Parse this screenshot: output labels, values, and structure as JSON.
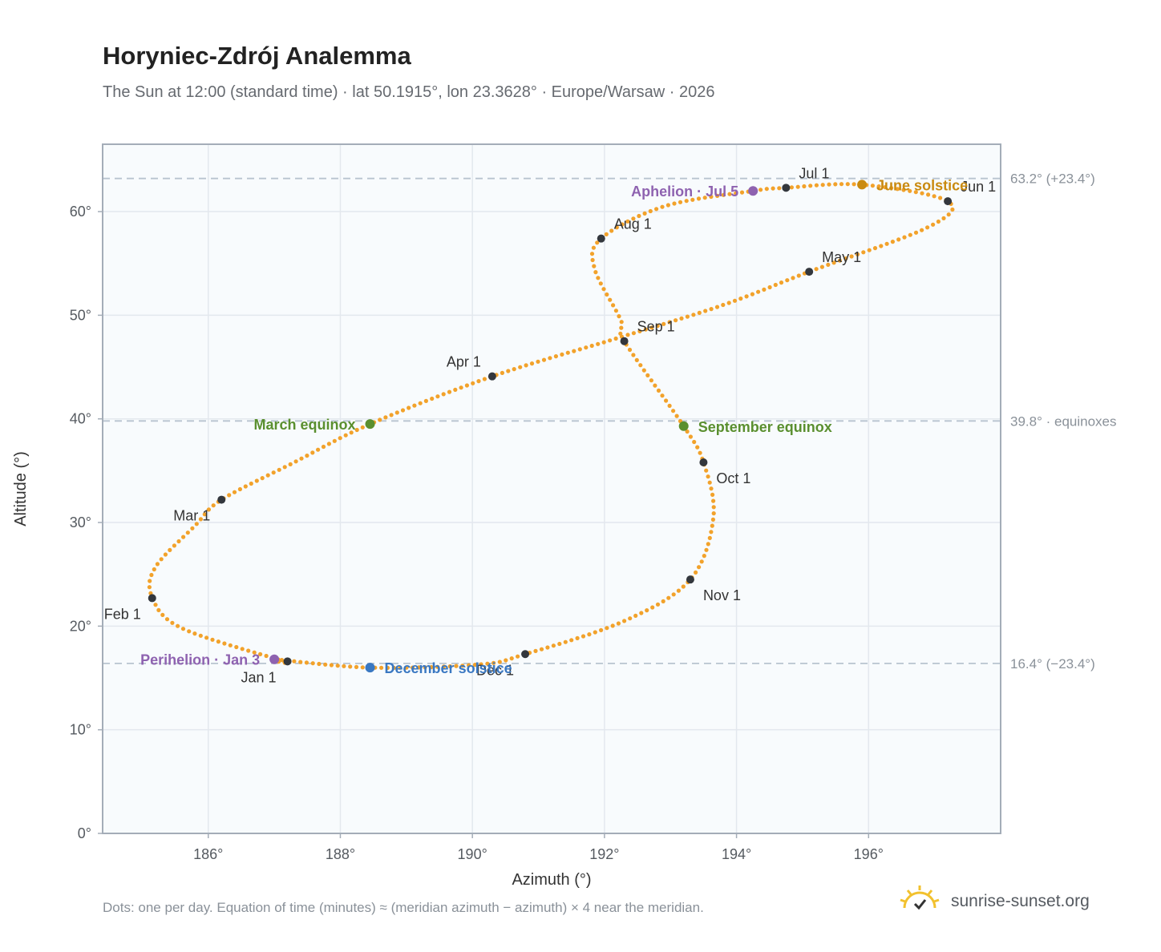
{
  "header": {
    "title": "Horyniec-Zdrój Analemma",
    "subtitle": "The Sun at 12:00 (standard time) · lat 50.1915°, lon 23.3628° · Europe/Warsaw · 2026"
  },
  "footer": {
    "note": "Dots: one per day. Equation of time (minutes) ≈ (meridian azimuth − azimuth) × 4 near the meridian.",
    "brand": "sunrise-sunset.org",
    "brand_icon": "sun-logo-icon"
  },
  "colors": {
    "path": "#f2a22b",
    "month_marker": "#33373d",
    "equinox": "#5a8f2f",
    "june_solstice": "#c98a10",
    "december_solstice": "#3a78c2",
    "apsis": "#8e62b0",
    "plot_bg": "#f8fbfd",
    "grid": "#e3e8ee",
    "frame": "#a4adb8",
    "ref_line": "#b8c4d0"
  },
  "chart_data": {
    "type": "scatter",
    "title": "Horyniec-Zdrój Analemma",
    "xlabel": "Azimuth (°)",
    "ylabel": "Altitude (°)",
    "xlim": [
      184.4,
      198.0
    ],
    "ylim": [
      0,
      66.5
    ],
    "xticks": [
      186,
      188,
      190,
      192,
      194,
      196
    ],
    "yticks": [
      0,
      10,
      20,
      30,
      40,
      50,
      60
    ],
    "x_tick_labels": [
      "186°",
      "188°",
      "190°",
      "192°",
      "194°",
      "196°"
    ],
    "y_tick_labels": [
      "0°",
      "10°",
      "20°",
      "30°",
      "40°",
      "50°",
      "60°"
    ],
    "grid": true,
    "legend": "none",
    "series": [
      {
        "points_per": "day",
        "anchors": [
          {
            "x": 187.15,
            "y": 16.6
          },
          {
            "x": 185.6,
            "y": 19.8
          },
          {
            "x": 185.15,
            "y": 22.8
          },
          {
            "x": 185.2,
            "y": 25.7
          },
          {
            "x": 185.8,
            "y": 29.7
          },
          {
            "x": 186.2,
            "y": 32.2
          },
          {
            "x": 187.3,
            "y": 35.8
          },
          {
            "x": 188.45,
            "y": 39.5
          },
          {
            "x": 190.3,
            "y": 44.1
          },
          {
            "x": 192.2,
            "y": 47.8
          },
          {
            "x": 193.8,
            "y": 51.0
          },
          {
            "x": 195.1,
            "y": 54.2
          },
          {
            "x": 196.9,
            "y": 58.5
          },
          {
            "x": 197.2,
            "y": 61.0
          },
          {
            "x": 195.9,
            "y": 62.6
          },
          {
            "x": 194.75,
            "y": 62.3
          },
          {
            "x": 194.25,
            "y": 62.0
          },
          {
            "x": 192.9,
            "y": 60.5
          },
          {
            "x": 191.95,
            "y": 57.4
          },
          {
            "x": 191.85,
            "y": 54.5
          },
          {
            "x": 192.25,
            "y": 49.5
          },
          {
            "x": 192.3,
            "y": 47.5
          },
          {
            "x": 193.2,
            "y": 39.3
          },
          {
            "x": 193.5,
            "y": 35.8
          },
          {
            "x": 193.65,
            "y": 30.5
          },
          {
            "x": 193.3,
            "y": 24.5
          },
          {
            "x": 192.3,
            "y": 20.5
          },
          {
            "x": 190.8,
            "y": 17.3
          },
          {
            "x": 190.1,
            "y": 16.3
          },
          {
            "x": 188.45,
            "y": 16.0
          },
          {
            "x": 187.0,
            "y": 16.8
          },
          {
            "x": 187.15,
            "y": 16.6
          }
        ]
      }
    ],
    "month_markers": [
      {
        "label": "Jan 1",
        "x": 187.2,
        "y": 16.6,
        "pos": "below-left"
      },
      {
        "label": "Feb 1",
        "x": 185.15,
        "y": 22.7,
        "pos": "below-left"
      },
      {
        "label": "Mar 1",
        "x": 186.2,
        "y": 32.2,
        "pos": "below-left"
      },
      {
        "label": "Apr 1",
        "x": 190.3,
        "y": 44.1,
        "pos": "above-left"
      },
      {
        "label": "May 1",
        "x": 195.1,
        "y": 54.2,
        "pos": "above-right"
      },
      {
        "label": "Jun 1",
        "x": 197.2,
        "y": 61.0,
        "pos": "above-right"
      },
      {
        "label": "Jul 1",
        "x": 194.75,
        "y": 62.3,
        "pos": "above-right"
      },
      {
        "label": "Aug 1",
        "x": 191.95,
        "y": 57.4,
        "pos": "above-right"
      },
      {
        "label": "Sep 1",
        "x": 192.3,
        "y": 47.5,
        "pos": "above-right"
      },
      {
        "label": "Oct 1",
        "x": 193.5,
        "y": 35.8,
        "pos": "below-right"
      },
      {
        "label": "Nov 1",
        "x": 193.3,
        "y": 24.5,
        "pos": "below-right"
      },
      {
        "label": "Dec 1",
        "x": 190.8,
        "y": 17.3,
        "pos": "below-left"
      }
    ],
    "events": [
      {
        "label": "March equinox",
        "x": 188.45,
        "y": 39.5,
        "color": "#5a8f2f",
        "pos": "left"
      },
      {
        "label": "September equinox",
        "x": 193.2,
        "y": 39.3,
        "color": "#5a8f2f",
        "pos": "right"
      },
      {
        "label": "June solstice",
        "x": 195.9,
        "y": 62.6,
        "color": "#c98a10",
        "pos": "right"
      },
      {
        "label": "December solstice",
        "x": 188.45,
        "y": 16.0,
        "color": "#3a78c2",
        "pos": "right"
      },
      {
        "label": "Aphelion · Jul 5",
        "x": 194.25,
        "y": 62.0,
        "color": "#8e62b0",
        "pos": "left"
      },
      {
        "label": "Perihelion · Jan 3",
        "x": 187.0,
        "y": 16.8,
        "color": "#8e62b0",
        "pos": "left"
      }
    ],
    "reference_lines": [
      {
        "y": 63.2,
        "label": "63.2° (+23.4°)"
      },
      {
        "y": 39.8,
        "label": "39.8° · equinoxes"
      },
      {
        "y": 16.4,
        "label": "16.4° (−23.4°)"
      }
    ]
  }
}
